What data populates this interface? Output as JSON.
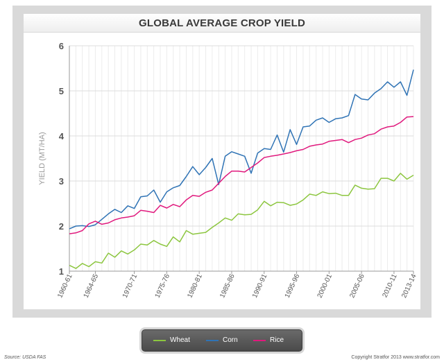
{
  "chart_data": {
    "type": "line",
    "title": "GLOBAL AVERAGE CROP YIELD",
    "ylabel": "YIELD (MT/HA)",
    "xlabel": "",
    "ylim": [
      1,
      6
    ],
    "yticks": [
      1,
      2,
      3,
      4,
      5,
      6
    ],
    "grid": true,
    "legend_position": "bottom",
    "tick_labels": [
      "1960-61",
      "1964-65",
      "1970-71",
      "1975-76",
      "1980-81",
      "1985-86",
      "1990-91",
      "1995-96",
      "2000-01",
      "2005-06",
      "2010-11",
      "2013-14"
    ],
    "tick_years": [
      1960,
      1964,
      1970,
      1975,
      1980,
      1985,
      1990,
      1995,
      2000,
      2005,
      2010,
      2013
    ],
    "x": [
      1960,
      1961,
      1962,
      1963,
      1964,
      1965,
      1966,
      1967,
      1968,
      1969,
      1970,
      1971,
      1972,
      1973,
      1974,
      1975,
      1976,
      1977,
      1978,
      1979,
      1980,
      1981,
      1982,
      1983,
      1984,
      1985,
      1986,
      1987,
      1988,
      1989,
      1990,
      1991,
      1992,
      1993,
      1994,
      1995,
      1996,
      1997,
      1998,
      1999,
      2000,
      2001,
      2002,
      2003,
      2004,
      2005,
      2006,
      2007,
      2008,
      2009,
      2010,
      2011,
      2012,
      2013
    ],
    "series": [
      {
        "name": "Wheat",
        "color": "#8cc63f",
        "values": [
          1.13,
          1.06,
          1.17,
          1.1,
          1.21,
          1.18,
          1.4,
          1.31,
          1.45,
          1.38,
          1.47,
          1.6,
          1.58,
          1.68,
          1.6,
          1.55,
          1.76,
          1.65,
          1.9,
          1.82,
          1.84,
          1.86,
          1.97,
          2.07,
          2.18,
          2.13,
          2.27,
          2.25,
          2.26,
          2.36,
          2.55,
          2.45,
          2.53,
          2.52,
          2.46,
          2.49,
          2.58,
          2.71,
          2.68,
          2.76,
          2.72,
          2.73,
          2.68,
          2.68,
          2.91,
          2.84,
          2.82,
          2.83,
          3.06,
          3.06,
          3.0,
          3.17,
          3.04,
          3.13
        ]
      },
      {
        "name": "Corn",
        "color": "#2f73b5",
        "values": [
          1.94,
          2.0,
          2.01,
          1.99,
          2.03,
          2.15,
          2.27,
          2.37,
          2.3,
          2.45,
          2.39,
          2.65,
          2.67,
          2.8,
          2.53,
          2.76,
          2.85,
          2.9,
          3.1,
          3.32,
          3.14,
          3.3,
          3.5,
          2.92,
          3.55,
          3.65,
          3.6,
          3.55,
          3.17,
          3.62,
          3.72,
          3.7,
          4.02,
          3.64,
          4.14,
          3.81,
          4.2,
          4.22,
          4.35,
          4.4,
          4.3,
          4.38,
          4.4,
          4.45,
          4.92,
          4.82,
          4.8,
          4.95,
          5.05,
          5.2,
          5.08,
          5.2,
          4.9,
          5.47
        ]
      },
      {
        "name": "Rice",
        "color": "#e0197d",
        "values": [
          1.83,
          1.85,
          1.9,
          2.05,
          2.11,
          2.04,
          2.07,
          2.14,
          2.18,
          2.2,
          2.23,
          2.35,
          2.33,
          2.3,
          2.46,
          2.4,
          2.48,
          2.43,
          2.58,
          2.68,
          2.66,
          2.75,
          2.8,
          2.95,
          3.1,
          3.22,
          3.22,
          3.2,
          3.3,
          3.4,
          3.52,
          3.55,
          3.57,
          3.6,
          3.63,
          3.67,
          3.7,
          3.77,
          3.8,
          3.82,
          3.88,
          3.9,
          3.92,
          3.85,
          3.92,
          3.95,
          4.02,
          4.05,
          4.15,
          4.2,
          4.22,
          4.3,
          4.42,
          4.43
        ]
      }
    ]
  },
  "legend": {
    "wheat": "Wheat",
    "corn": "Corn",
    "rice": "Rice"
  },
  "footer": {
    "source": "Source: USDA FAS",
    "copyright": "Copyright Stratfor 2013   www.stratfor.com"
  }
}
